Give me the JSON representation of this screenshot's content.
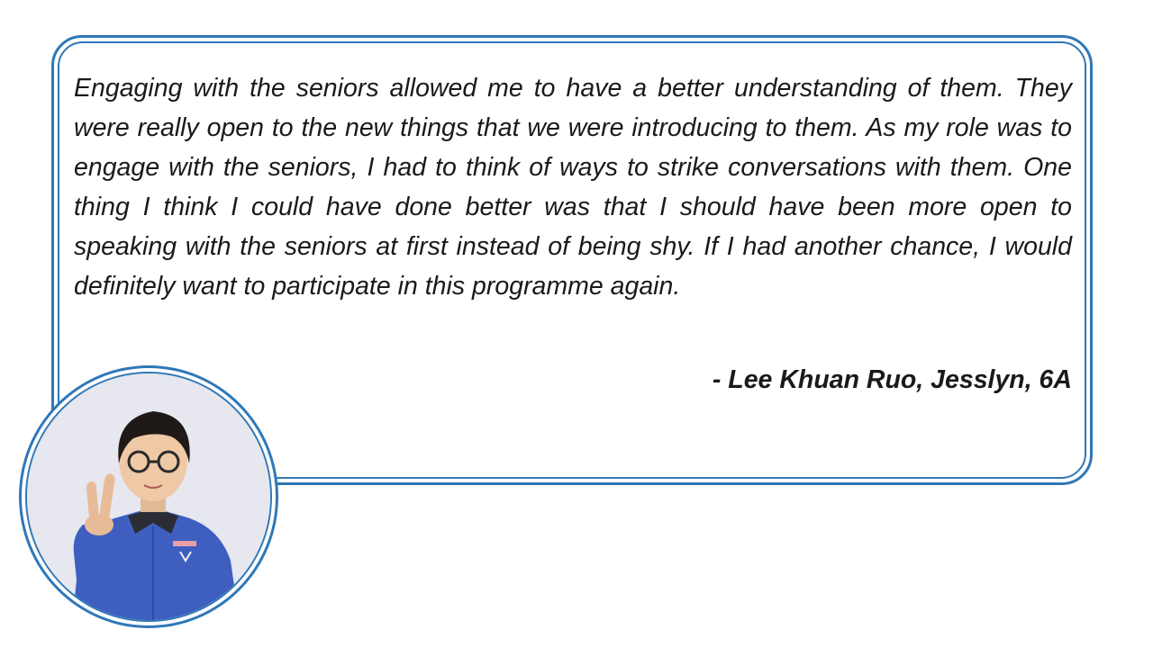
{
  "quote": {
    "text": "Engaging with the seniors allowed me to have a better understanding of them. They were really open to the new things that we were introducing to them. As my role was to engage with the seniors, I had to think of ways to strike conversations with them. One thing I think I could have done better was that I should have been more open to speaking with the seniors at first instead of being shy. If I had another chance, I would definitely want to participate in this programme again.",
    "attribution": "- Lee Khuan Ruo, Jesslyn, 6A"
  },
  "colors": {
    "border": "#2f78b7",
    "text": "#1a1a1a",
    "shirt": "#3e5fbf",
    "photo_background": "#e6e7ef"
  },
  "photo": {
    "icon": "student-portrait"
  }
}
